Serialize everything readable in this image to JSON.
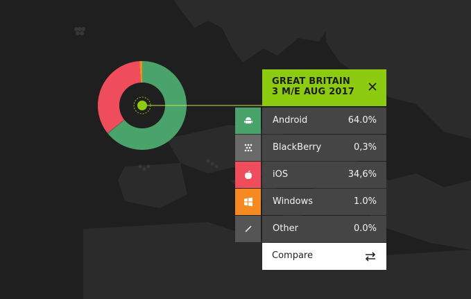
{
  "panel": {
    "title": "GREAT BRITAIN\n3 M/E AUG 2017",
    "rows": [
      {
        "label": "Android",
        "value": "64.0%",
        "icon": "android-icon",
        "color": "#4aa36a"
      },
      {
        "label": "BlackBerry",
        "value": "0,3%",
        "icon": "blackberry-icon",
        "color": "#6a6a6a"
      },
      {
        "label": "iOS",
        "value": "34,6%",
        "icon": "apple-icon",
        "color": "#f04d5c"
      },
      {
        "label": "Windows",
        "value": "1.0%",
        "icon": "windows-icon",
        "color": "#f58a22"
      },
      {
        "label": "Other",
        "value": "0.0%",
        "icon": "slash-icon",
        "color": "#555555"
      }
    ],
    "compare_label": "Compare"
  },
  "chart_data": {
    "type": "pie",
    "categories": [
      "Android",
      "BlackBerry",
      "iOS",
      "Windows",
      "Other"
    ],
    "values": [
      64.0,
      0.3,
      34.6,
      1.0,
      0.0
    ],
    "colors": [
      "#4aa36a",
      "#6a6a6a",
      "#f04d5c",
      "#f58a22",
      "#555555"
    ]
  },
  "colors": {
    "accent": "#8ccb10",
    "background": "#1f1f1f",
    "land": "#2a2a2a"
  }
}
